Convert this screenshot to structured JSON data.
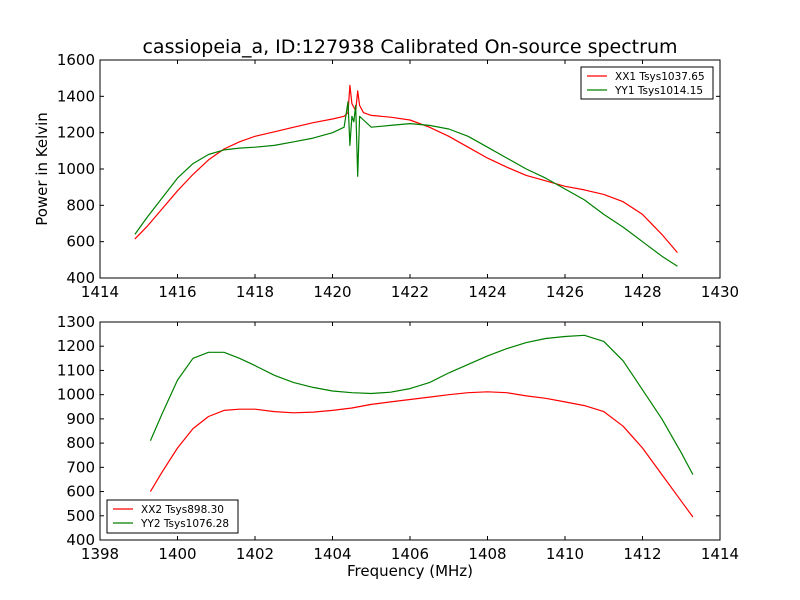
{
  "figure_title": "cassiopeia_a, ID:127938 Calibrated On-source spectrum",
  "chart_data": [
    {
      "type": "line",
      "title": "cassiopeia_a, ID:127938 Calibrated On-source spectrum",
      "xlabel": "",
      "ylabel": "Power in Kelvin",
      "xlim": [
        1414,
        1430
      ],
      "ylim": [
        400,
        1600
      ],
      "xticks": [
        1414,
        1416,
        1418,
        1420,
        1422,
        1424,
        1426,
        1428,
        1430
      ],
      "yticks": [
        400,
        600,
        800,
        1000,
        1200,
        1400,
        1600
      ],
      "grid": false,
      "legend_position": "top-right",
      "series": [
        {
          "name": "XX1 Tsys1037.65",
          "color": "#ff0000",
          "x": [
            1414.9,
            1415.2,
            1415.6,
            1416.0,
            1416.4,
            1416.8,
            1417.2,
            1417.6,
            1418.0,
            1418.5,
            1419.0,
            1419.5,
            1420.0,
            1420.3,
            1420.4,
            1420.45,
            1420.5,
            1420.55,
            1420.6,
            1420.65,
            1420.7,
            1420.8,
            1421.0,
            1421.5,
            1422.0,
            1422.5,
            1423.0,
            1423.5,
            1424.0,
            1424.5,
            1425.0,
            1425.5,
            1426.0,
            1426.5,
            1427.0,
            1427.5,
            1428.0,
            1428.5,
            1428.9
          ],
          "y": [
            615,
            680,
            780,
            880,
            970,
            1050,
            1110,
            1150,
            1180,
            1205,
            1230,
            1255,
            1275,
            1290,
            1310,
            1460,
            1360,
            1340,
            1320,
            1430,
            1350,
            1310,
            1295,
            1285,
            1270,
            1230,
            1180,
            1120,
            1060,
            1010,
            965,
            935,
            905,
            885,
            860,
            820,
            750,
            640,
            540
          ]
        },
        {
          "name": "YY1 Tsys1014.15",
          "color": "#008000",
          "x": [
            1414.9,
            1415.2,
            1415.6,
            1416.0,
            1416.4,
            1416.8,
            1417.2,
            1417.6,
            1418.0,
            1418.5,
            1419.0,
            1419.5,
            1420.0,
            1420.3,
            1420.4,
            1420.45,
            1420.5,
            1420.55,
            1420.6,
            1420.65,
            1420.7,
            1420.8,
            1421.0,
            1421.5,
            1422.0,
            1422.5,
            1423.0,
            1423.5,
            1424.0,
            1424.5,
            1425.0,
            1425.5,
            1426.0,
            1426.5,
            1427.0,
            1427.5,
            1428.0,
            1428.5,
            1428.9
          ],
          "y": [
            640,
            730,
            840,
            950,
            1030,
            1080,
            1105,
            1115,
            1120,
            1130,
            1150,
            1170,
            1200,
            1230,
            1370,
            1130,
            1290,
            1260,
            1350,
            960,
            1290,
            1270,
            1230,
            1240,
            1250,
            1240,
            1220,
            1180,
            1120,
            1060,
            1000,
            950,
            890,
            830,
            750,
            680,
            600,
            520,
            465
          ]
        }
      ]
    },
    {
      "type": "line",
      "title": "",
      "xlabel": "Frequency (MHz)",
      "ylabel": "",
      "xlim": [
        1398,
        1414
      ],
      "ylim": [
        400,
        1300
      ],
      "xticks": [
        1398,
        1400,
        1402,
        1404,
        1406,
        1408,
        1410,
        1412,
        1414
      ],
      "yticks": [
        400,
        500,
        600,
        700,
        800,
        900,
        1000,
        1100,
        1200,
        1300
      ],
      "grid": false,
      "legend_position": "bottom-left",
      "series": [
        {
          "name": "XX2 Tsys898.30",
          "color": "#ff0000",
          "x": [
            1399.3,
            1399.6,
            1400.0,
            1400.4,
            1400.8,
            1401.2,
            1401.6,
            1402.0,
            1402.5,
            1403.0,
            1403.5,
            1404.0,
            1404.5,
            1405.0,
            1405.5,
            1406.0,
            1406.5,
            1407.0,
            1407.5,
            1408.0,
            1408.5,
            1409.0,
            1409.5,
            1410.0,
            1410.5,
            1411.0,
            1411.5,
            1412.0,
            1412.5,
            1413.0,
            1413.3
          ],
          "y": [
            600,
            680,
            780,
            860,
            910,
            935,
            940,
            940,
            930,
            925,
            928,
            935,
            945,
            960,
            970,
            980,
            990,
            1000,
            1008,
            1012,
            1008,
            995,
            985,
            970,
            955,
            930,
            870,
            780,
            670,
            560,
            495
          ]
        },
        {
          "name": "YY2 Tsys1076.28",
          "color": "#008000",
          "x": [
            1399.3,
            1399.6,
            1400.0,
            1400.4,
            1400.8,
            1401.2,
            1401.6,
            1402.0,
            1402.5,
            1403.0,
            1403.5,
            1404.0,
            1404.5,
            1405.0,
            1405.5,
            1406.0,
            1406.5,
            1407.0,
            1407.5,
            1408.0,
            1408.5,
            1409.0,
            1409.5,
            1410.0,
            1410.5,
            1411.0,
            1411.5,
            1412.0,
            1412.5,
            1413.0,
            1413.3
          ],
          "y": [
            810,
            920,
            1060,
            1150,
            1175,
            1175,
            1150,
            1120,
            1080,
            1050,
            1030,
            1015,
            1008,
            1005,
            1010,
            1025,
            1050,
            1090,
            1125,
            1160,
            1190,
            1215,
            1232,
            1240,
            1245,
            1220,
            1140,
            1020,
            900,
            760,
            670
          ]
        }
      ]
    }
  ]
}
